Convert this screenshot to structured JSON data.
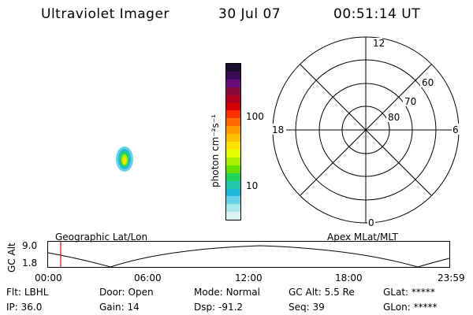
{
  "header": {
    "instrument": "Ultraviolet Imager",
    "date": "30 Jul 07",
    "time": "00:51:14 UT"
  },
  "colorbar": {
    "unit_label": "photon cm⁻²s⁻¹",
    "ticks": [
      "100",
      "10"
    ],
    "colors": [
      "#1a0d2e",
      "#3a0b57",
      "#6a0f7a",
      "#8a0a3a",
      "#b00020",
      "#d40000",
      "#ff3000",
      "#ff6a00",
      "#ff9a00",
      "#ffc000",
      "#ffe200",
      "#e6ff00",
      "#a8f000",
      "#66e000",
      "#22d25a",
      "#22c8a8",
      "#22b8d8",
      "#66d2e8",
      "#a8e6ee",
      "#d8f2f2"
    ]
  },
  "polar_plot": {
    "mlt_labels": {
      "top": "12",
      "left": "18",
      "right": "6",
      "bottom": "0"
    },
    "lat_labels": [
      "60",
      "70",
      "80"
    ]
  },
  "orbit": {
    "ylabel": "GC Alt",
    "yticks": [
      "9.0",
      "1.8"
    ],
    "left_title": "Geographic Lat/Lon",
    "right_title": "Apex MLat/MLT",
    "xticks": [
      "00:00",
      "06:00",
      "12:00",
      "18:00",
      "23:59"
    ],
    "marker_color": "#e00000"
  },
  "status": {
    "row1": [
      {
        "label": "Flt:",
        "value": "LBHL"
      },
      {
        "label": "Door:",
        "value": "Open"
      },
      {
        "label": "Mode:",
        "value": "Normal"
      },
      {
        "label": "GC Alt:",
        "value": "5.5 Re"
      },
      {
        "label": "GLat:",
        "value": "*****"
      }
    ],
    "row2": [
      {
        "label": "IP:",
        "value": "36.0"
      },
      {
        "label": "Gain:",
        "value": "14"
      },
      {
        "label": "Dsp:",
        "value": "-91.2"
      },
      {
        "label": "Seq:",
        "value": "39"
      },
      {
        "label": "GLon:",
        "value": "*****"
      }
    ]
  }
}
